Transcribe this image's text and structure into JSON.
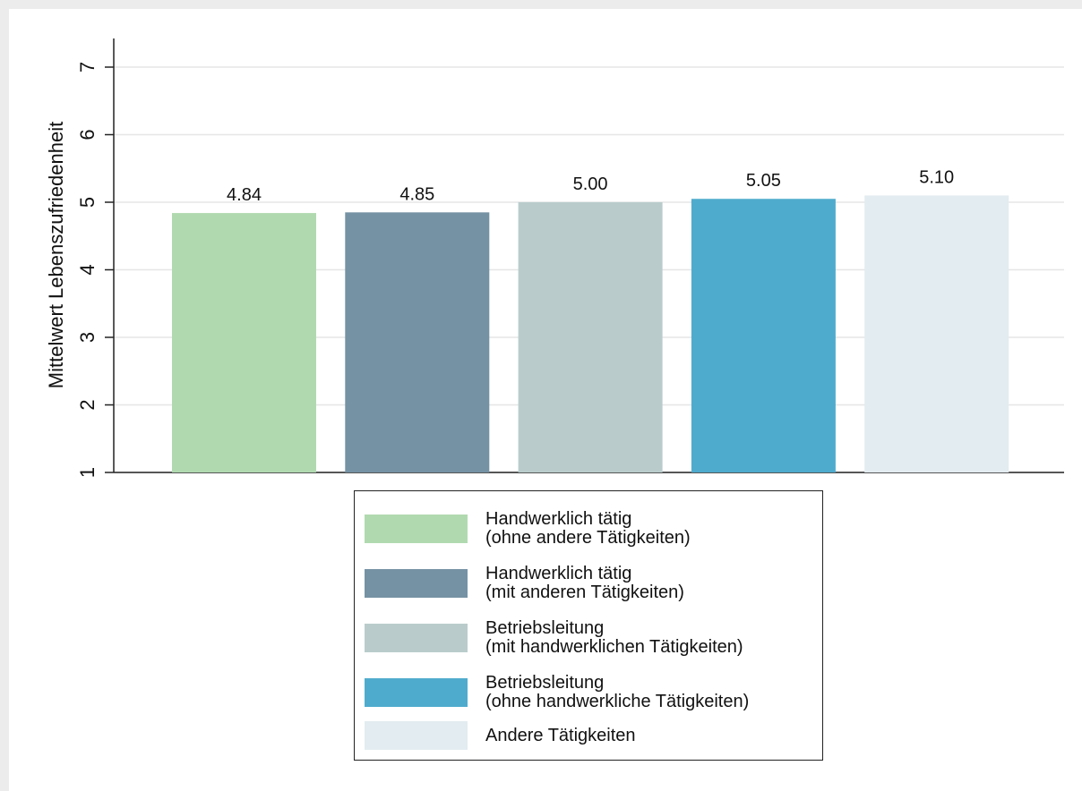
{
  "chart_data": {
    "type": "bar",
    "y_label": "Mittelwert Lebenszufriedenheit",
    "ylim": [
      1,
      7
    ],
    "yticks": [
      1,
      2,
      3,
      4,
      5,
      6,
      7
    ],
    "grid": true,
    "series": [
      {
        "name": "Handwerklich tätig\n(ohne andere Tätigkeiten)",
        "color": "#b1d9b0",
        "values": [
          4.84
        ],
        "value_labels": [
          "4.84"
        ]
      },
      {
        "name": "Handwerklich tätig\n(mit anderen Tätigkeiten)",
        "color": "#7592a4",
        "values": [
          4.85
        ],
        "value_labels": [
          "4.85"
        ]
      },
      {
        "name": "Betriebsleitung\n(mit handwerklichen Tätigkeiten)",
        "color": "#b9cccb",
        "values": [
          5.0
        ],
        "value_labels": [
          "5.00"
        ]
      },
      {
        "name": "Betriebsleitung\n(ohne handwerkliche Tätigkeiten)",
        "color": "#4fabcd",
        "values": [
          5.05
        ],
        "value_labels": [
          "5.05"
        ]
      },
      {
        "name": "Andere Tätigkeiten",
        "color": "#e3ecf0",
        "values": [
          5.1
        ],
        "value_labels": [
          "5.10"
        ]
      }
    ]
  }
}
